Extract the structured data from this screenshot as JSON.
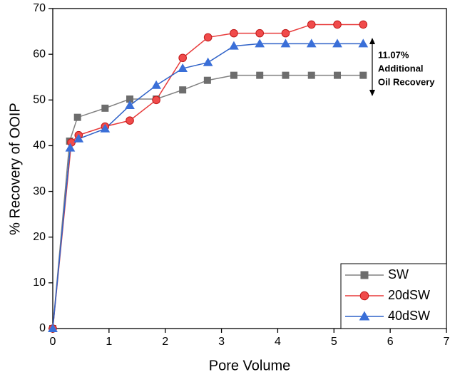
{
  "chart_data": {
    "type": "line",
    "x_label": "Pore Volume",
    "y_label": "% Recovery of OOIP",
    "xlim": [
      0,
      7
    ],
    "xticks": [
      0,
      1,
      2,
      3,
      4,
      5,
      6,
      7
    ],
    "ylim": [
      0,
      70
    ],
    "yticks": [
      0,
      10,
      20,
      30,
      40,
      50,
      60,
      70
    ],
    "legend": "lower right",
    "annotation": {
      "lines": [
        "11.07%",
        "Additional",
        "Oil Recovery"
      ]
    },
    "series": [
      {
        "name": "SW",
        "color": "#808080",
        "marker": "square",
        "marker_color": "#6d6d6d",
        "x": [
          0,
          0.3,
          0.44,
          0.93,
          1.37,
          1.84,
          2.31,
          2.75,
          3.22,
          3.68,
          4.14,
          4.6,
          5.06,
          5.52
        ],
        "values": [
          0,
          41,
          46.2,
          48.2,
          50.2,
          50.2,
          52.2,
          54.3,
          55.4,
          55.4,
          55.4,
          55.4,
          55.4,
          55.4
        ]
      },
      {
        "name": "20dSW",
        "color": "#e83a3a",
        "marker": "circle",
        "marker_color": "#f04b4b",
        "x": [
          0,
          0.33,
          0.46,
          0.93,
          1.37,
          1.84,
          2.31,
          2.76,
          3.22,
          3.68,
          4.14,
          4.6,
          5.06,
          5.52
        ],
        "values": [
          0,
          40.7,
          42.3,
          44.2,
          45.5,
          50,
          59.2,
          63.7,
          64.6,
          64.6,
          64.6,
          66.5,
          66.5,
          66.5
        ]
      },
      {
        "name": "40dSW",
        "color": "#2f62c8",
        "marker": "triangle",
        "marker_color": "#3a6fd8",
        "x": [
          0,
          0.31,
          0.46,
          0.93,
          1.37,
          1.84,
          2.31,
          2.76,
          3.22,
          3.68,
          4.14,
          4.6,
          5.06,
          5.52
        ],
        "values": [
          0,
          39.5,
          41.5,
          43.7,
          48.8,
          53.2,
          56.9,
          58.2,
          61.8,
          62.3,
          62.3,
          62.3,
          62.3,
          62.3
        ]
      }
    ]
  }
}
